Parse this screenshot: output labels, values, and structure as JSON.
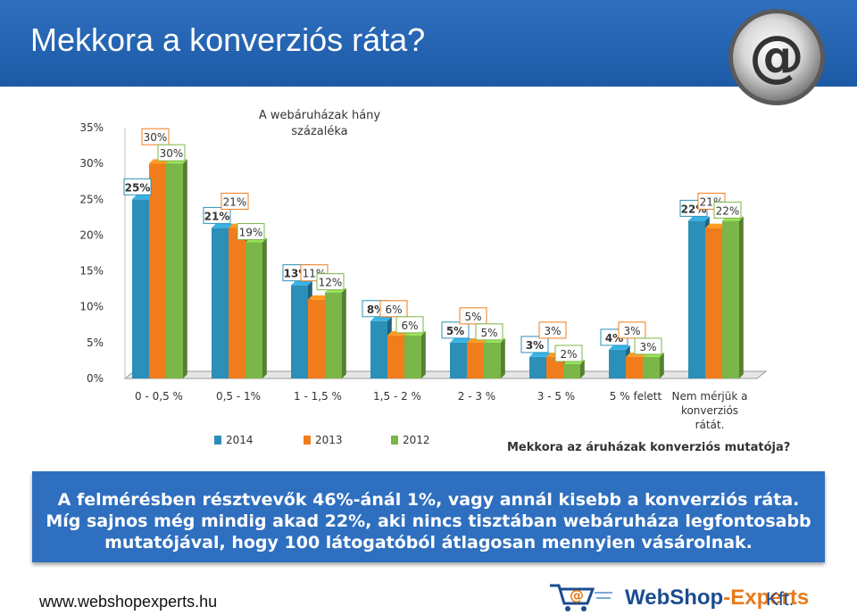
{
  "header": {
    "title": "Mekkora a konverziós ráta?"
  },
  "chart_data": {
    "type": "bar",
    "title": "A webáruházak hány százaléka",
    "subtitle": "Mekkora az áruházak konverziós mutatója?",
    "categories": [
      "0 - 0,5 %",
      "0,5 - 1%",
      "1 - 1,5 %",
      "1,5 - 2 %",
      "2 - 3 %",
      "3 - 5 %",
      "5 % felett",
      "Nem mérjük a konverziós rátát."
    ],
    "series": [
      {
        "name": "2014",
        "values": [
          25,
          21,
          13,
          8,
          5,
          3,
          4,
          22
        ],
        "color": "#2b8fb8"
      },
      {
        "name": "2013",
        "values": [
          30,
          21,
          11,
          6,
          5,
          3,
          3,
          21
        ],
        "color": "#f07c1b"
      },
      {
        "name": "2012",
        "values": [
          30,
          19,
          12,
          6,
          5,
          2,
          3,
          22
        ],
        "color": "#7ab648"
      }
    ],
    "data_labels": [
      [
        "25%",
        "21%",
        "13%",
        "8%",
        "5%",
        "3%",
        "4%",
        "22%"
      ],
      [
        "30%",
        "21%",
        "11%",
        "6%",
        "5%",
        "3%",
        "3%",
        "21%"
      ],
      [
        "30%",
        "19%",
        "12%",
        "6%",
        "5%",
        "2%",
        "3%",
        "22%"
      ]
    ],
    "ytick_labels": [
      "0%",
      "5%",
      "10%",
      "15%",
      "20%",
      "25%",
      "30%",
      "35%"
    ],
    "ylim": [
      0,
      35
    ],
    "legend": "bottom-left",
    "grid": false
  },
  "info_box": {
    "line1": "A felmérésben résztvevők 46%-ánál 1%, vagy annál kisebb a konverziós ráta.",
    "line2": "Míg sajnos még mindig akad 22%, aki nincs tisztában webáruháza legfontosabb",
    "line3": "mutatójával, hogy 100 látogatóból átlagosan mennyien vásárolnak."
  },
  "footer": {
    "url": "www.webshopexperts.hu",
    "brand_a": "WebShop",
    "brand_b": "-Experts",
    "brand_c": "Kft."
  },
  "icons": {
    "header_logo": "at-sign-icon",
    "brand_logo": "shopping-cart-at-icon"
  }
}
